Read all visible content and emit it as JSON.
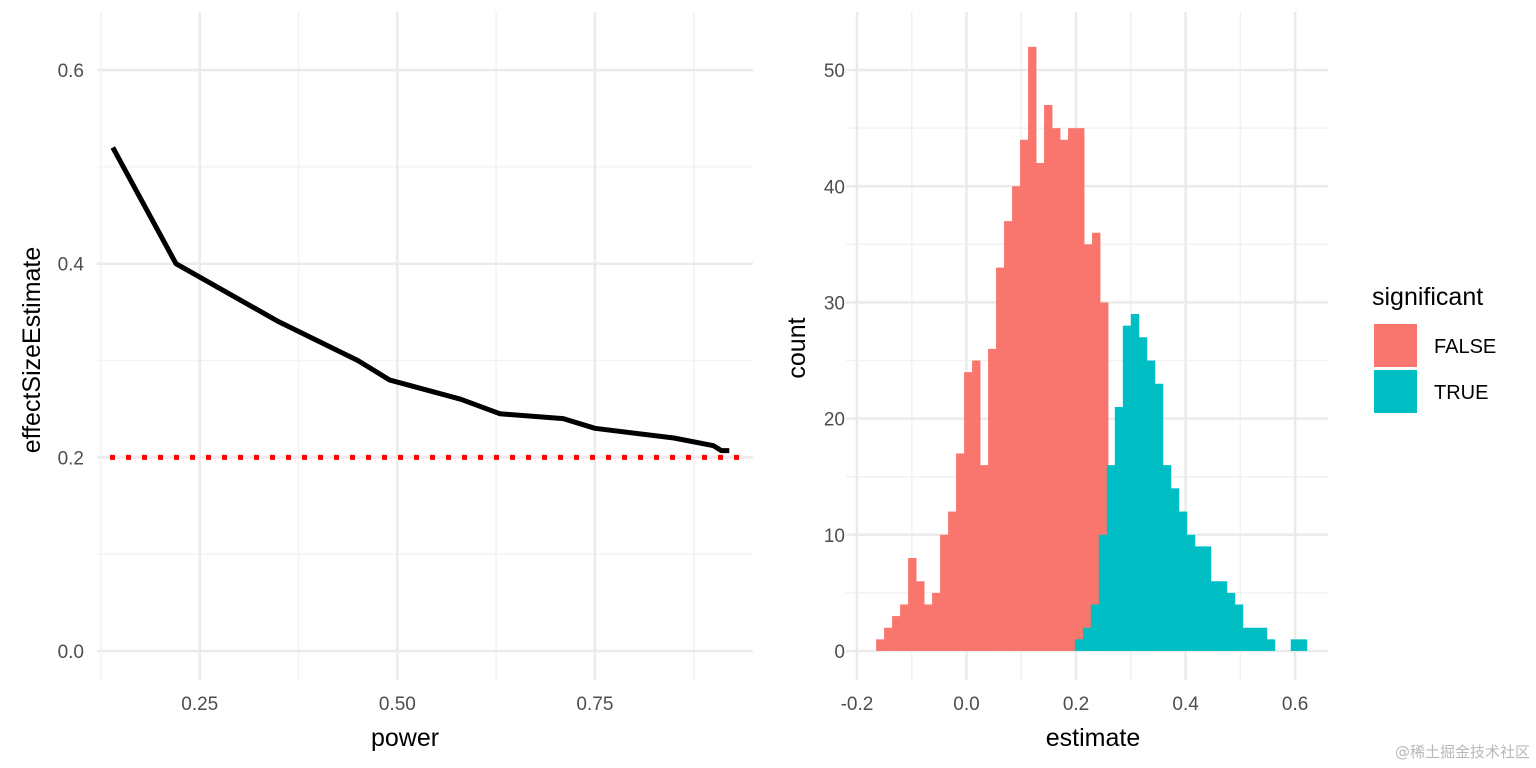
{
  "chart_data": [
    {
      "type": "line",
      "xlabel": "power",
      "ylabel": "effectSizeEstimate",
      "xlim": [
        0.12,
        0.95
      ],
      "ylim": [
        -0.03,
        0.66
      ],
      "xticks": [
        0.25,
        0.5,
        0.75
      ],
      "xtick_labels": [
        "0.25",
        "0.50",
        "0.75"
      ],
      "yticks": [
        0.0,
        0.2,
        0.4,
        0.6
      ],
      "ytick_labels": [
        "0.0",
        "0.2",
        "0.4",
        "0.6"
      ],
      "grid": true,
      "series": [
        {
          "color": "#000000",
          "x": [
            0.14,
            0.22,
            0.35,
            0.45,
            0.49,
            0.58,
            0.63,
            0.71,
            0.75,
            0.85,
            0.9,
            0.91,
            0.92
          ],
          "y": [
            0.52,
            0.4,
            0.34,
            0.3,
            0.28,
            0.26,
            0.245,
            0.24,
            0.23,
            0.22,
            0.212,
            0.207,
            0.207
          ]
        }
      ],
      "reference_line": {
        "y": 0.2,
        "color": "#ff0000",
        "style": "dotted"
      }
    },
    {
      "type": "histogram",
      "xlabel": "estimate",
      "ylabel": "count",
      "xlim": [
        -0.22,
        0.66
      ],
      "ylim": [
        -2.5,
        55
      ],
      "xticks": [
        -0.2,
        0.0,
        0.2,
        0.4,
        0.6
      ],
      "xtick_labels": [
        "-0.2",
        "0.0",
        "0.2",
        "0.4",
        "0.6"
      ],
      "yticks": [
        0,
        10,
        20,
        30,
        40,
        50
      ],
      "ytick_labels": [
        "0",
        "10",
        "20",
        "30",
        "40",
        "50"
      ],
      "grid": true,
      "bin_width": 0.0146,
      "legend": {
        "title": "significant",
        "placement": "right",
        "entries": [
          {
            "label": "FALSE",
            "color": "#F8766D"
          },
          {
            "label": "TRUE",
            "color": "#00BFC4"
          }
        ]
      },
      "series": [
        {
          "name": "FALSE",
          "color": "#F8766D",
          "bins_start": [
            -0.165,
            -0.1504,
            -0.1358,
            -0.1212,
            -0.1066,
            -0.092,
            -0.0774,
            -0.0628,
            -0.0482,
            -0.0336,
            -0.019,
            -0.0044,
            0.0102,
            0.0248,
            0.0394,
            0.054,
            0.0686,
            0.0832,
            0.0978,
            0.1124,
            0.127,
            0.1416,
            0.1562,
            0.1708,
            0.1854,
            0.2,
            0.2146,
            0.2292,
            0.2438
          ],
          "counts": [
            1,
            2,
            3,
            4,
            8,
            6,
            4,
            5,
            10,
            12,
            17,
            24,
            25,
            16,
            26,
            33,
            37,
            40,
            44,
            52,
            42,
            47,
            45,
            44,
            45,
            45,
            35,
            36,
            30
          ]
        },
        {
          "name": "TRUE",
          "color": "#00BFC4",
          "bins_start": [
            0.1978,
            0.2124,
            0.227,
            0.2416,
            0.2562,
            0.2708,
            0.2854,
            0.3,
            0.3146,
            0.3292,
            0.3438,
            0.3584,
            0.373,
            0.3876,
            0.4022,
            0.4168,
            0.4314,
            0.446,
            0.4606,
            0.4752,
            0.4898,
            0.5044,
            0.519,
            0.5336,
            0.5482,
            0.5628,
            0.5774,
            0.592,
            0.6066
          ],
          "counts": [
            1,
            2,
            4,
            10,
            16,
            21,
            28,
            29,
            27,
            25,
            23,
            16,
            14,
            12,
            10,
            9,
            9,
            6,
            6,
            5,
            4,
            2,
            2,
            2,
            1,
            0,
            0,
            1,
            1
          ]
        }
      ]
    }
  ],
  "watermark": "@稀土掘金技术社区"
}
